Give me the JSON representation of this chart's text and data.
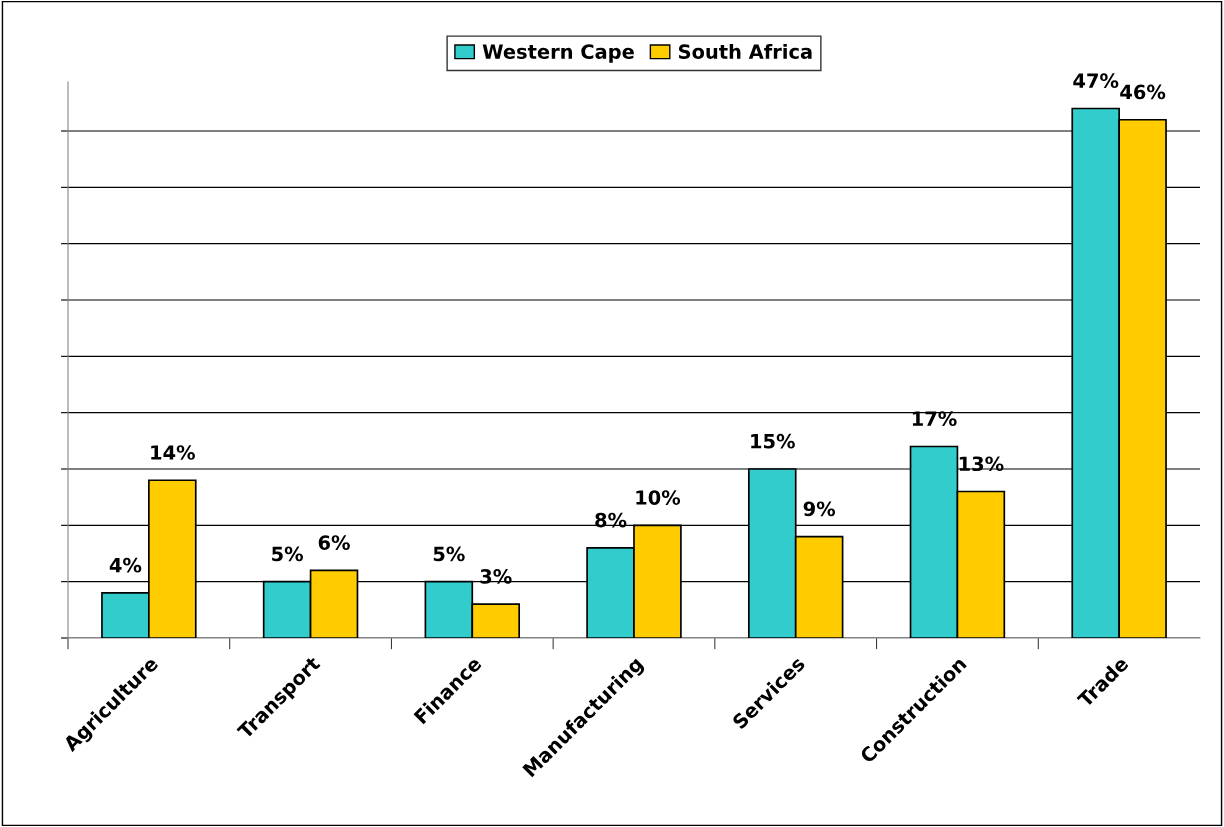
{
  "chart_data": {
    "type": "bar",
    "categories": [
      "Agriculture",
      "Transport",
      "Finance",
      "Manufacturing",
      "Services",
      "Construction",
      "Trade"
    ],
    "series": [
      {
        "name": "Western Cape",
        "color": "#33cccc",
        "values": [
          4,
          5,
          5,
          8,
          15,
          17,
          47
        ],
        "value_labels": [
          "4%",
          "5%",
          "5%",
          "8%",
          "15%",
          "17%",
          "47%"
        ]
      },
      {
        "name": "South Africa",
        "color": "#ffcc00",
        "values": [
          14,
          6,
          3,
          10,
          9,
          13,
          46
        ],
        "value_labels": [
          "14%",
          "6%",
          "3%",
          "10%",
          "9%",
          "13%",
          "46%"
        ]
      }
    ],
    "tick_labels": "x",
    "grid": "y",
    "legend": "top"
  }
}
